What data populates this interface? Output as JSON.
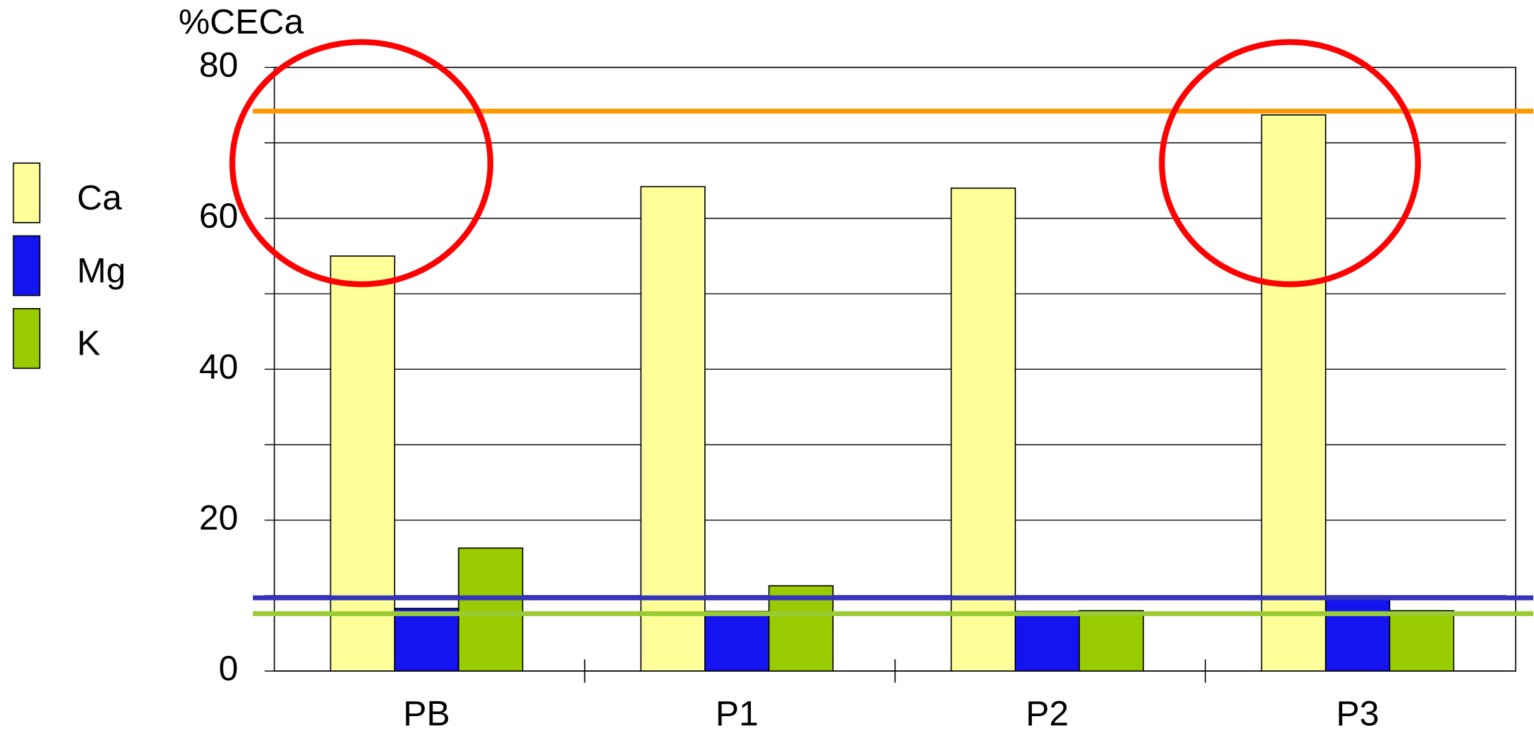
{
  "chart_data": {
    "type": "bar",
    "y_label": "%CECa",
    "categories": [
      "PB",
      "P1",
      "P2",
      "P3"
    ],
    "series": [
      {
        "name": "Ca",
        "color": "#ffff99",
        "values": [
          55,
          64.2,
          64,
          73.7
        ]
      },
      {
        "name": "Mg",
        "color": "#1414f0",
        "values": [
          8.3,
          7.9,
          7.9,
          9.7
        ]
      },
      {
        "name": "K",
        "color": "#99cc00",
        "values": [
          16.3,
          11.3,
          8,
          8
        ]
      }
    ],
    "reference_lines": [
      {
        "value": 74.2,
        "color": "#ff9900"
      },
      {
        "value": 9.7,
        "color": "#3333bb"
      },
      {
        "value": 7.6,
        "color": "#99cc33"
      }
    ],
    "ylim": [
      0,
      80
    ],
    "yticks": [
      0,
      20,
      40,
      60,
      80
    ],
    "minor_yticks": [
      10,
      30,
      50,
      70
    ],
    "grid": true,
    "legend": "left"
  }
}
